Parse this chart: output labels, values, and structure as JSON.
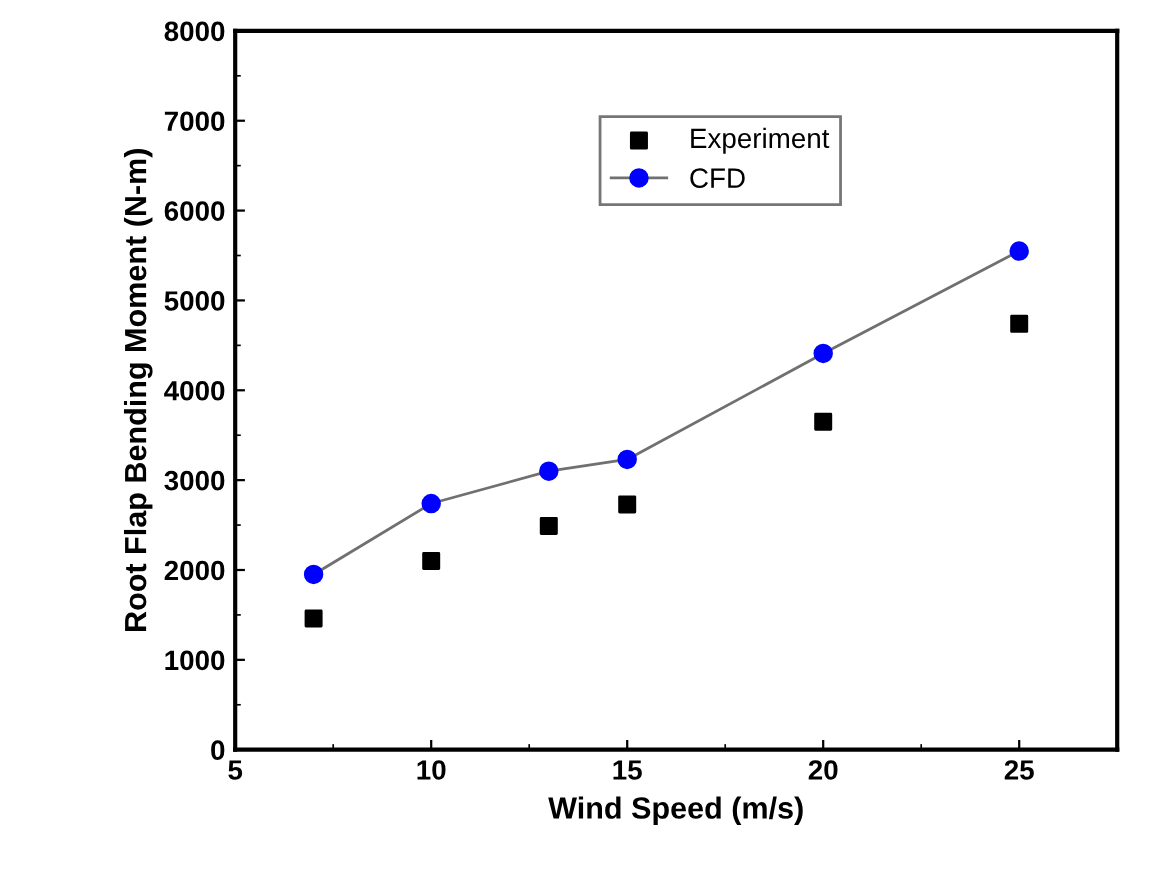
{
  "chart_data": {
    "type": "line",
    "xlabel": "Wind Speed (m/s)",
    "ylabel": "Root Flap Bending Moment (N-m)",
    "x": [
      7,
      10,
      13,
      15,
      20,
      25
    ],
    "series": [
      {
        "name": "Experiment",
        "type": "scatter",
        "color": "#000000",
        "marker": "square",
        "values": [
          1460,
          2100,
          2490,
          2730,
          3650,
          4740
        ]
      },
      {
        "name": "CFD",
        "color": "#0000ff",
        "marker": "circle",
        "values": [
          1950,
          2740,
          3100,
          3230,
          4410,
          5550
        ]
      }
    ],
    "xlim": [
      5,
      27.5
    ],
    "xticks": [
      5,
      10,
      15,
      20,
      25
    ],
    "ylim": [
      0,
      8000
    ],
    "yticks": [
      0,
      1000,
      2000,
      3000,
      4000,
      5000,
      6000,
      7000,
      8000
    ],
    "grid": false,
    "legend": "top right"
  }
}
